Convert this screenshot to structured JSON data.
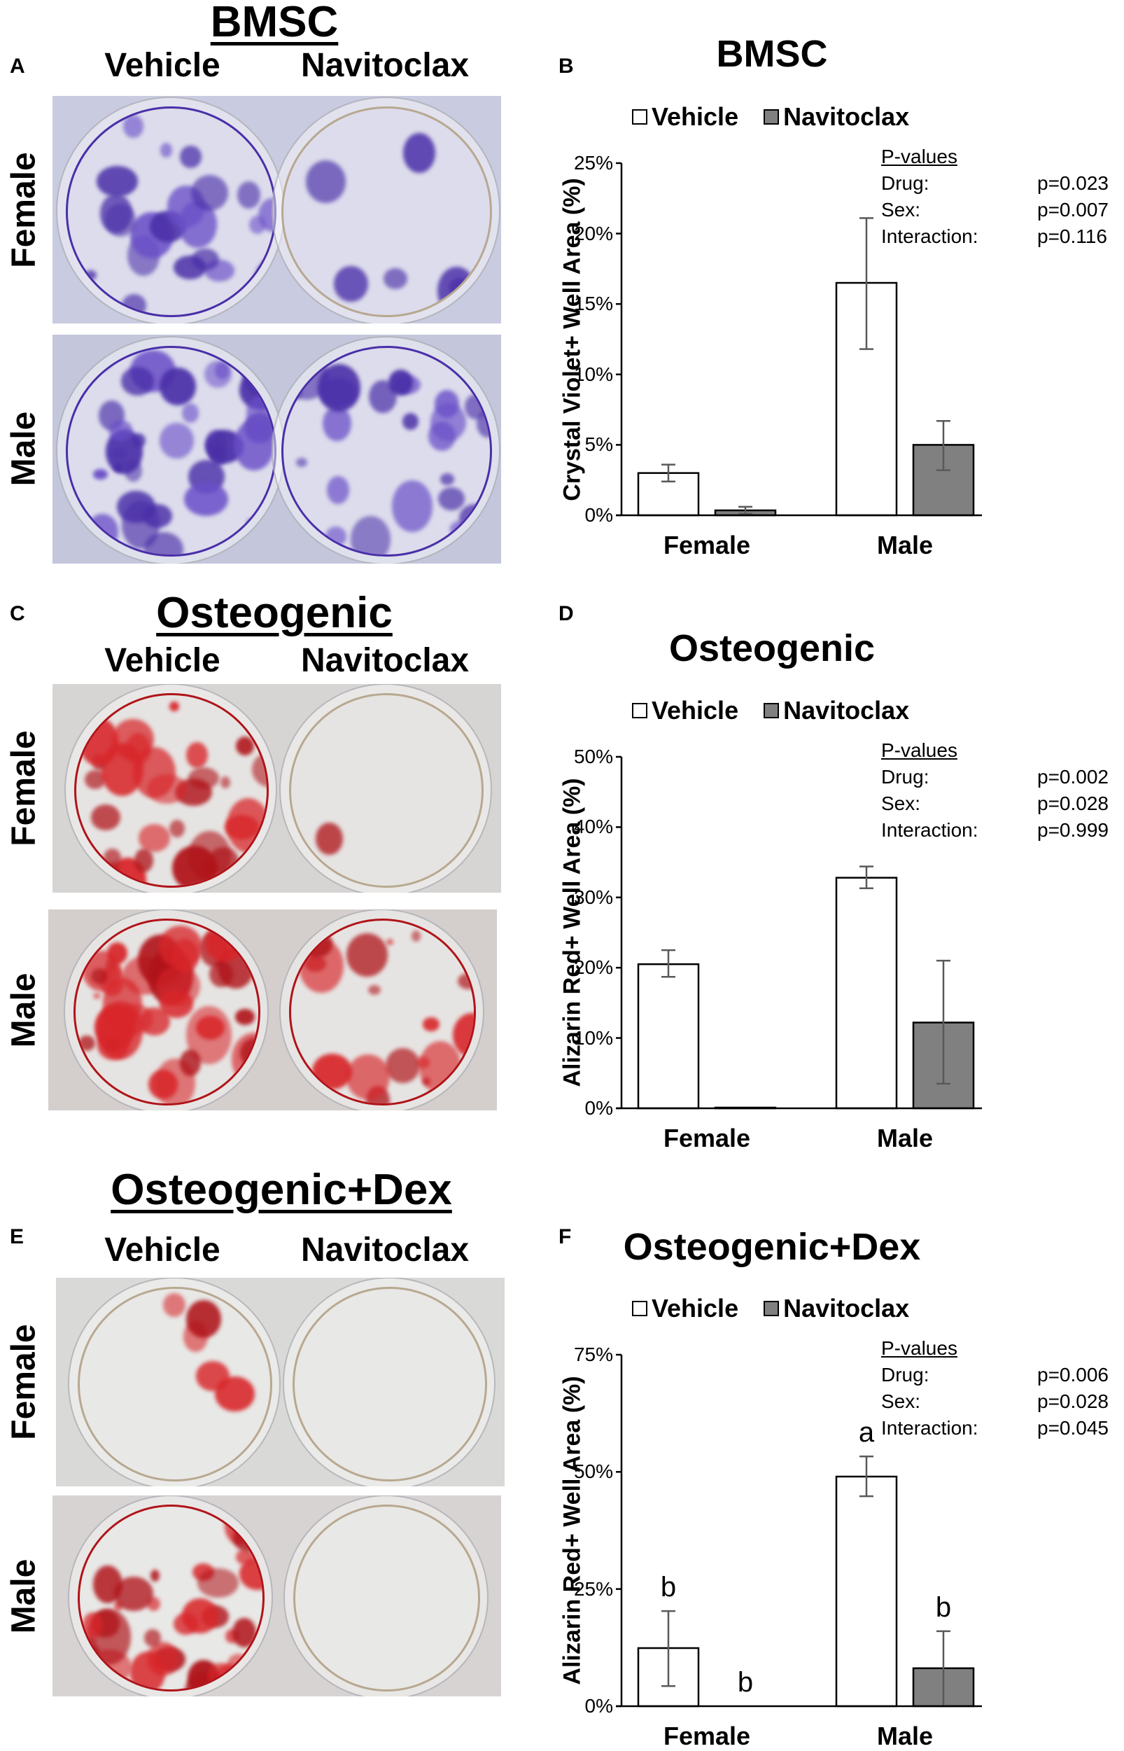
{
  "panels": {
    "A": {
      "letter": "A",
      "title": "BMSC",
      "columns": [
        "Vehicle",
        "Navitoclax"
      ],
      "rows": [
        "Female",
        "Male"
      ],
      "stain": "crystal-violet",
      "colors": {
        "plate": "#c9cbe0",
        "stain": "#6a4fc8",
        "stain_dark": "#4a2fa8",
        "well": "#dcdcec"
      }
    },
    "B": {
      "letter": "B"
    },
    "C": {
      "letter": "C",
      "title": "Osteogenic",
      "columns": [
        "Vehicle",
        "Navitoclax"
      ],
      "rows": [
        "Female",
        "Male"
      ],
      "stain": "alizarin-red",
      "colors": {
        "plate": "#d7d5d3",
        "stain": "#d8262a",
        "stain_dark": "#b0141a",
        "well": "#e6e4e2"
      }
    },
    "D": {
      "letter": "D"
    },
    "E": {
      "letter": "E",
      "title": "Osteogenic+Dex",
      "columns": [
        "Vehicle",
        "Navitoclax"
      ],
      "rows": [
        "Female",
        "Male"
      ],
      "stain": "alizarin-red",
      "colors": {
        "plate": "#d9d9d7",
        "stain": "#d8262a",
        "stain_dark": "#b0141a",
        "well": "#e8e8e6"
      }
    },
    "F": {
      "letter": "F"
    }
  },
  "legend": {
    "vehicle": "Vehicle",
    "navitoclax": "Navitoclax"
  },
  "colors": {
    "vehicle_fill": "#ffffff",
    "navitoclax_fill": "#808080",
    "bar_border": "#000000",
    "error_bar": "#595959"
  },
  "chart_data": [
    {
      "panel": "B",
      "type": "bar",
      "title": "BMSC",
      "xlabel": "",
      "ylabel": "Crystal Violet+ Well Area (%)",
      "categories": [
        "Female",
        "Male"
      ],
      "ylim": [
        0,
        25
      ],
      "yticks": [
        "0%",
        "5%",
        "10%",
        "15%",
        "20%",
        "25%"
      ],
      "legend_position": "top",
      "grid": false,
      "series": [
        {
          "name": "Vehicle",
          "values": [
            3.0,
            16.5
          ],
          "err_low": [
            2.4,
            11.8
          ],
          "err_high": [
            3.6,
            21.1
          ]
        },
        {
          "name": "Navitoclax",
          "values": [
            0.35,
            5.0
          ],
          "err_low": [
            0.1,
            3.2
          ],
          "err_high": [
            0.6,
            6.7
          ]
        }
      ],
      "annotations": [],
      "pvalues": {
        "header": "P-values",
        "rows": [
          {
            "label": "Drug:",
            "value": "p=0.023"
          },
          {
            "label": "Sex:",
            "value": "p=0.007"
          },
          {
            "label": "Interaction:",
            "value": "p=0.116"
          }
        ]
      }
    },
    {
      "panel": "D",
      "type": "bar",
      "title": "Osteogenic",
      "xlabel": "",
      "ylabel": "Alizarin Red+ Well Area (%)",
      "categories": [
        "Female",
        "Male"
      ],
      "ylim": [
        0,
        50
      ],
      "yticks": [
        "0%",
        "10%",
        "20%",
        "30%",
        "40%",
        "50%"
      ],
      "legend_position": "top",
      "grid": false,
      "series": [
        {
          "name": "Vehicle",
          "values": [
            20.5,
            32.8
          ],
          "err_low": [
            18.7,
            31.3
          ],
          "err_high": [
            22.5,
            34.4
          ]
        },
        {
          "name": "Navitoclax",
          "values": [
            0.1,
            12.2
          ],
          "err_low": [
            0.1,
            3.5
          ],
          "err_high": [
            0.1,
            21.0
          ]
        }
      ],
      "annotations": [],
      "pvalues": {
        "header": "P-values",
        "rows": [
          {
            "label": "Drug:",
            "value": "p=0.002"
          },
          {
            "label": "Sex:",
            "value": "p=0.028"
          },
          {
            "label": "Interaction:",
            "value": "p=0.999"
          }
        ]
      }
    },
    {
      "panel": "F",
      "type": "bar",
      "title": "Osteogenic+Dex",
      "xlabel": "",
      "ylabel": "Alizarin Red+ Well Area (%)",
      "categories": [
        "Female",
        "Male"
      ],
      "ylim": [
        0,
        75
      ],
      "yticks": [
        "0%",
        "25%",
        "50%",
        "75%"
      ],
      "legend_position": "top",
      "grid": false,
      "series": [
        {
          "name": "Vehicle",
          "values": [
            12.4,
            49.0
          ],
          "err_low": [
            4.3,
            44.8
          ],
          "err_high": [
            20.3,
            53.3
          ]
        },
        {
          "name": "Navitoclax",
          "values": [
            0.0,
            8.1
          ],
          "err_low": [
            0.0,
            0.0
          ],
          "err_high": [
            0.0,
            16.0
          ]
        }
      ],
      "annotations": [
        {
          "series": "Vehicle",
          "category": "Female",
          "text": "b"
        },
        {
          "series": "Navitoclax",
          "category": "Female",
          "text": "b"
        },
        {
          "series": "Vehicle",
          "category": "Male",
          "text": "a"
        },
        {
          "series": "Navitoclax",
          "category": "Male",
          "text": "b"
        }
      ],
      "pvalues": {
        "header": "P-values",
        "rows": [
          {
            "label": "Drug:",
            "value": "p=0.006"
          },
          {
            "label": "Sex:",
            "value": "p=0.028"
          },
          {
            "label": "Interaction:",
            "value": "p=0.045"
          }
        ]
      }
    }
  ]
}
